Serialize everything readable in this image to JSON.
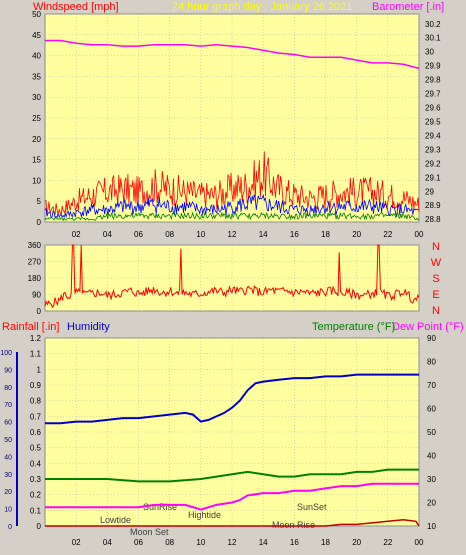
{
  "header": {
    "left_label": "Windspeed [mph]",
    "center_label": "24 hour graph day : January 26 2021",
    "right_label": "Barometer [.in]"
  },
  "colors": {
    "plot_bg": "#ffffa0",
    "page_bg": "#d4d0c8",
    "grid": "#b0b0b0",
    "wind": "#ff0000",
    "wind_avg": "#0000ff",
    "wind_low": "#008000",
    "barometer": "#ff00ff",
    "direction": "#ff0000",
    "humidity": "#0000c8",
    "temperature": "#008000",
    "dewpoint": "#ff00ff",
    "rainfall": "#c00000",
    "axis_text": "#000000"
  },
  "x_ticks": [
    "02",
    "04",
    "06",
    "08",
    "10",
    "12",
    "14",
    "16",
    "18",
    "20",
    "22",
    "00"
  ],
  "compass": [
    "N",
    "W",
    "S",
    "E",
    "N"
  ],
  "bottom_header": {
    "rainfall_label": "Rainfall [.in]",
    "humidity_label": "Humidity",
    "temperature_label": "Temperature (°F)",
    "dewpoint_label": "Dew Point (°F)"
  },
  "events": [
    "Lowtide",
    "Moon Set",
    "SunRise",
    "Hightide",
    "SunSet",
    "Moon Rise"
  ],
  "chart_data": [
    {
      "type": "line",
      "panel": "wind-barometer",
      "x_unit": "hour",
      "y_left_label": "Windspeed [mph]",
      "y_left_ticks": [
        "0",
        "5",
        "10",
        "15",
        "20",
        "25",
        "30",
        "35",
        "40",
        "45",
        "50"
      ],
      "y_left_lim": [
        0,
        50
      ],
      "y_right_label": "Barometer [.in]",
      "y_right_ticks": [
        "28.8",
        "28.9",
        "29",
        "29.1",
        "29.2",
        "29.3",
        "29.4",
        "29.5",
        "29.6",
        "29.7",
        "29.8",
        "29.9",
        "30",
        "30.1",
        "30.2"
      ],
      "y_right_lim": [
        28.78,
        30.27
      ],
      "series": [
        {
          "name": "Barometer [.in]",
          "axis": "right",
          "x": [
            0,
            1,
            2,
            3,
            4,
            5,
            6,
            7,
            8,
            9,
            10,
            11,
            12,
            13,
            14,
            15,
            16,
            17,
            18,
            19,
            20,
            21,
            22,
            23,
            24
          ],
          "values": [
            30.08,
            30.08,
            30.06,
            30.05,
            30.05,
            30.04,
            30.04,
            30.05,
            30.05,
            30.05,
            30.04,
            30.05,
            30.04,
            30.03,
            30.01,
            29.99,
            29.98,
            29.96,
            29.96,
            29.96,
            29.94,
            29.92,
            29.92,
            29.91,
            29.88
          ]
        },
        {
          "axis": "left",
          "x": [
            0,
            1,
            2,
            3,
            4,
            5,
            6,
            7,
            8,
            9,
            10,
            11,
            12,
            13,
            14,
            15,
            16,
            17,
            18,
            19,
            20,
            21,
            22,
            23,
            24
          ],
          "values": [
            5,
            4,
            7,
            9,
            10,
            11,
            10,
            12,
            11,
            10,
            9,
            9,
            11,
            12,
            16,
            11,
            9,
            8,
            9,
            10,
            10,
            10,
            9,
            8,
            6
          ]
        },
        {
          "axis": "left",
          "x": [
            0,
            1,
            2,
            3,
            4,
            5,
            6,
            7,
            8,
            9,
            10,
            11,
            12,
            13,
            14,
            15,
            16,
            17,
            18,
            19,
            20,
            21,
            22,
            23,
            24
          ],
          "values": [
            3,
            2,
            3,
            4,
            4,
            5,
            5,
            6,
            5,
            5,
            4,
            4,
            5,
            6,
            6,
            5,
            4,
            4,
            5,
            5,
            5,
            5,
            4,
            4,
            3
          ]
        },
        {
          "axis": "left",
          "x": [
            0,
            1,
            2,
            3,
            4,
            5,
            6,
            7,
            8,
            9,
            10,
            11,
            12,
            13,
            14,
            15,
            16,
            17,
            18,
            19,
            20,
            21,
            22,
            23,
            24
          ],
          "values": [
            1,
            1,
            1,
            1,
            2,
            2,
            2,
            2,
            2,
            2,
            2,
            2,
            2,
            2,
            2,
            2,
            2,
            2,
            2,
            2,
            2,
            2,
            2,
            2,
            1
          ]
        }
      ]
    },
    {
      "type": "line",
      "panel": "wind-direction",
      "y_ticks": [
        "360",
        "270",
        "180",
        "90",
        "0"
      ],
      "y_lim": [
        0,
        360
      ],
      "x": [
        0,
        0.5,
        1,
        1.2,
        1.5,
        2,
        2.5,
        3,
        3.5,
        4,
        4.5,
        5,
        5.5,
        6,
        6.5,
        7,
        7.5,
        8,
        8.5,
        9,
        9.5,
        10,
        10.5,
        11,
        11.5,
        12,
        12.5,
        13,
        13.5,
        14,
        14.5,
        15,
        15.5,
        16,
        16.5,
        17,
        17.5,
        18,
        18.5,
        19,
        19.5,
        20,
        20.5,
        21,
        21.5,
        22,
        22.5,
        23,
        23.5,
        24
      ],
      "values": [
        30,
        45,
        60,
        90,
        80,
        100,
        90,
        95,
        100,
        85,
        90,
        100,
        110,
        95,
        105,
        120,
        100,
        110,
        95,
        100,
        90,
        95,
        105,
        110,
        100,
        115,
        105,
        120,
        110,
        100,
        115,
        105,
        110,
        100,
        105,
        95,
        100,
        105,
        110,
        100,
        95,
        90,
        85,
        95,
        100,
        80,
        90,
        110,
        70,
        60
      ]
    },
    {
      "type": "line",
      "panel": "humidity-temperature",
      "y_left_ticks": [
        "0",
        "0.1",
        "0.2",
        "0.3",
        "0.4",
        "0.5",
        "0.6",
        "0.7",
        "0.8",
        "0.9",
        "1",
        "1.1",
        "1.2"
      ],
      "y_left_lim": [
        0,
        1.2
      ],
      "y_humidity_ticks": [
        "0",
        "10",
        "20",
        "30",
        "40",
        "50",
        "60",
        "70",
        "80",
        "90",
        "100"
      ],
      "y_right_ticks": [
        "10",
        "20",
        "30",
        "40",
        "50",
        "60",
        "70",
        "80",
        "90"
      ],
      "y_right_lim": [
        10,
        90
      ],
      "series": [
        {
          "name": "Humidity",
          "axis": "humidity",
          "x": [
            0,
            1,
            2,
            3,
            4,
            5,
            6,
            7,
            8,
            9,
            9.5,
            10,
            10.5,
            11,
            11.5,
            12,
            12.5,
            13,
            13.5,
            14,
            15,
            16,
            17,
            18,
            19,
            20,
            21,
            22,
            23,
            24
          ],
          "values": [
            59,
            59,
            60,
            60,
            61,
            62,
            62,
            63,
            64,
            65,
            64,
            60,
            61,
            63,
            65,
            68,
            72,
            78,
            82,
            83,
            84,
            85,
            85,
            86,
            86,
            87,
            87,
            87,
            87,
            87
          ]
        },
        {
          "name": "Temperature (°F)",
          "axis": "right",
          "x": [
            0,
            2,
            4,
            6,
            8,
            10,
            11,
            12,
            13,
            14,
            15,
            16,
            17,
            18,
            19,
            20,
            21,
            22,
            23,
            24
          ],
          "values": [
            30,
            30,
            30,
            29,
            29,
            30,
            31,
            32,
            33,
            32,
            31,
            31,
            32,
            32,
            32,
            33,
            33,
            34,
            34,
            34
          ]
        },
        {
          "name": "Dew Point (°F)",
          "axis": "right",
          "x": [
            0,
            2,
            4,
            6,
            7,
            8,
            9,
            9.5,
            10,
            10.5,
            11,
            12,
            12.5,
            13,
            14,
            15,
            16,
            17,
            18,
            19,
            20,
            21,
            22,
            23,
            24
          ],
          "values": [
            18,
            18,
            18,
            18,
            19,
            19,
            19,
            18,
            17,
            18,
            19,
            20,
            21,
            23,
            24,
            24,
            25,
            25,
            26,
            27,
            27,
            28,
            28,
            28,
            28
          ]
        },
        {
          "name": "Rainfall [.in]",
          "axis": "left",
          "x": [
            0,
            18,
            19,
            20,
            21,
            22,
            23,
            23.8,
            24
          ],
          "values": [
            0,
            0,
            0.01,
            0.01,
            0.02,
            0.03,
            0.04,
            0.03,
            0
          ]
        }
      ]
    }
  ]
}
